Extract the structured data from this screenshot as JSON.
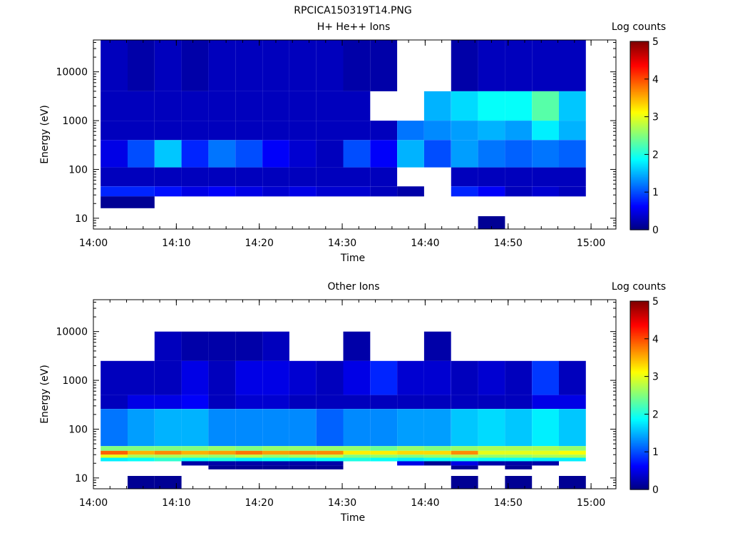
{
  "figure": {
    "title": "RPCICA150319T14.PNG"
  },
  "chart_data": [
    {
      "type": "heatmap",
      "title": "H+ He++ Ions",
      "xlabel": "Time",
      "ylabel": "Energy (eV)",
      "x_ticks": [
        "14:00",
        "14:10",
        "14:20",
        "14:30",
        "14:40",
        "14:50",
        "15:00"
      ],
      "y_ticks": [
        "10",
        "100",
        "1000",
        "10000"
      ],
      "x_range": [
        "14:00",
        "15:03"
      ],
      "y_range": [
        6,
        45000
      ],
      "y_scale": "log",
      "colorbar": {
        "label": "Log counts",
        "ticks": [
          "0",
          "1",
          "2",
          "3",
          "4",
          "5"
        ],
        "range": [
          0,
          5
        ]
      },
      "time_bins": [
        "14:02:30",
        "14:05:45",
        "14:09:00",
        "14:12:15",
        "14:15:30",
        "14:18:45",
        "14:22:00",
        "14:25:15",
        "14:28:30",
        "14:31:45",
        "14:35:00",
        "14:38:15",
        "14:41:30",
        "14:44:45",
        "14:48:00",
        "14:51:15",
        "14:54:30",
        "14:57:45"
      ],
      "rows": [
        {
          "e_lo": 4000,
          "e_hi": 45000,
          "v": [
            0.3,
            0.2,
            0.3,
            0.2,
            0.3,
            0.3,
            0.3,
            0.3,
            0.3,
            0.2,
            0.2,
            null,
            null,
            0.2,
            0.3,
            0.3,
            0.3,
            0.3
          ]
        },
        {
          "e_lo": 1000,
          "e_hi": 4000,
          "v": [
            0.3,
            0.3,
            0.3,
            0.3,
            0.3,
            0.3,
            0.3,
            0.3,
            0.3,
            0.3,
            null,
            null,
            1.5,
            1.7,
            1.9,
            1.9,
            2.3,
            1.6
          ]
        },
        {
          "e_lo": 400,
          "e_hi": 1000,
          "v": [
            0.3,
            0.3,
            0.3,
            0.3,
            0.3,
            0.3,
            0.3,
            0.3,
            0.3,
            0.3,
            0.3,
            1.2,
            1.3,
            1.4,
            1.5,
            1.4,
            1.8,
            1.5
          ]
        },
        {
          "e_lo": 110,
          "e_hi": 400,
          "v": [
            0.5,
            1.0,
            1.6,
            0.8,
            1.2,
            1.0,
            0.6,
            0.4,
            0.3,
            1.0,
            0.6,
            1.5,
            1.0,
            1.4,
            1.2,
            1.1,
            1.2,
            1.1
          ]
        },
        {
          "e_lo": 45,
          "e_hi": 110,
          "v": [
            0.3,
            0.3,
            0.3,
            0.3,
            0.3,
            0.3,
            0.3,
            0.3,
            0.3,
            0.3,
            0.3,
            null,
            null,
            0.3,
            0.3,
            0.3,
            0.3,
            0.3
          ]
        },
        {
          "e_lo": 28,
          "e_hi": 45,
          "v": [
            0.8,
            0.8,
            0.7,
            0.5,
            0.6,
            0.5,
            0.4,
            0.5,
            0.4,
            0.4,
            0.3,
            0.2,
            null,
            0.8,
            0.6,
            0.3,
            0.4,
            0.3
          ]
        },
        {
          "e_lo": 16,
          "e_hi": 28,
          "v": [
            0.1,
            0.1,
            null,
            null,
            null,
            null,
            null,
            null,
            null,
            null,
            null,
            null,
            null,
            null,
            null,
            null,
            null,
            null
          ]
        },
        {
          "e_lo": 6,
          "e_hi": 11,
          "v": [
            null,
            null,
            null,
            null,
            null,
            null,
            null,
            null,
            null,
            null,
            null,
            null,
            null,
            null,
            0.1,
            null,
            null,
            null
          ]
        }
      ]
    },
    {
      "type": "heatmap",
      "title": "Other Ions",
      "xlabel": "Time",
      "ylabel": "Energy (eV)",
      "x_ticks": [
        "14:00",
        "14:10",
        "14:20",
        "14:30",
        "14:40",
        "14:50",
        "15:00"
      ],
      "y_ticks": [
        "10",
        "100",
        "1000",
        "10000"
      ],
      "x_range": [
        "14:00",
        "15:03"
      ],
      "y_range": [
        6,
        45000
      ],
      "y_scale": "log",
      "colorbar": {
        "label": "Log counts",
        "ticks": [
          "0",
          "1",
          "2",
          "3",
          "4",
          "5"
        ],
        "range": [
          0,
          5
        ]
      },
      "time_bins": [
        "14:02:30",
        "14:05:45",
        "14:09:00",
        "14:12:15",
        "14:15:30",
        "14:18:45",
        "14:22:00",
        "14:25:15",
        "14:28:30",
        "14:31:45",
        "14:35:00",
        "14:38:15",
        "14:41:30",
        "14:44:45",
        "14:48:00",
        "14:51:15",
        "14:54:30",
        "14:57:45"
      ],
      "rows": [
        {
          "e_lo": 2500,
          "e_hi": 10000,
          "v": [
            null,
            null,
            0.3,
            0.2,
            0.2,
            0.2,
            0.3,
            null,
            null,
            0.2,
            null,
            null,
            0.2,
            null,
            null,
            null,
            null,
            null
          ]
        },
        {
          "e_lo": 500,
          "e_hi": 2500,
          "v": [
            0.3,
            0.3,
            0.3,
            0.5,
            0.3,
            0.5,
            0.5,
            0.4,
            0.3,
            0.5,
            0.8,
            0.4,
            0.4,
            0.3,
            0.4,
            0.3,
            0.9,
            0.3
          ]
        },
        {
          "e_lo": 260,
          "e_hi": 500,
          "v": [
            0.3,
            0.5,
            0.5,
            0.6,
            0.3,
            0.4,
            0.4,
            0.3,
            0.3,
            0.3,
            0.3,
            0.3,
            0.3,
            0.3,
            0.3,
            0.3,
            0.5,
            0.5
          ]
        },
        {
          "e_lo": 45,
          "e_hi": 260,
          "v": [
            1.2,
            1.4,
            1.5,
            1.5,
            1.3,
            1.3,
            1.3,
            1.3,
            1.1,
            1.3,
            1.3,
            1.4,
            1.4,
            1.6,
            1.7,
            1.6,
            1.8,
            1.6
          ]
        },
        {
          "e_lo": 36,
          "e_hi": 45,
          "v": [
            2.5,
            2.5,
            2.5,
            2.5,
            2.6,
            2.5,
            2.6,
            2.6,
            2.6,
            2.6,
            2.4,
            2.6,
            2.5,
            2.6,
            2.7,
            2.7,
            2.7,
            2.6
          ]
        },
        {
          "e_lo": 30,
          "e_hi": 36,
          "v": [
            3.9,
            3.5,
            3.7,
            3.5,
            3.6,
            3.8,
            3.6,
            3.7,
            3.7,
            3.2,
            3.2,
            3.3,
            3.3,
            3.7,
            3.0,
            3.0,
            3.0,
            3.1
          ]
        },
        {
          "e_lo": 26,
          "e_hi": 30,
          "v": [
            3.0,
            2.7,
            2.7,
            2.7,
            2.6,
            2.8,
            2.6,
            2.7,
            2.8,
            2.5,
            2.6,
            2.5,
            2.6,
            2.7,
            2.6,
            2.6,
            2.7,
            2.7
          ]
        },
        {
          "e_lo": 22,
          "e_hi": 26,
          "v": [
            1.8,
            1.9,
            2.1,
            1.9,
            2.0,
            1.8,
            1.9,
            1.8,
            1.9,
            2.0,
            1.9,
            1.8,
            1.9,
            2.0,
            1.9,
            1.9,
            1.8,
            1.8
          ]
        },
        {
          "e_lo": 18,
          "e_hi": 22,
          "v": [
            null,
            null,
            null,
            0.2,
            0.2,
            0.2,
            0.2,
            0.2,
            0.2,
            null,
            null,
            0.5,
            0.1,
            0.5,
            0.2,
            0.2,
            0.2,
            null
          ]
        },
        {
          "e_lo": 15,
          "e_hi": 18,
          "v": [
            null,
            null,
            null,
            null,
            0.1,
            0.1,
            0.1,
            0.1,
            0.1,
            null,
            null,
            null,
            null,
            0.1,
            null,
            0.1,
            null,
            null
          ]
        },
        {
          "e_lo": 6,
          "e_hi": 11,
          "v": [
            null,
            0.1,
            0.1,
            null,
            null,
            null,
            null,
            null,
            null,
            null,
            null,
            null,
            null,
            0.1,
            null,
            0.1,
            null,
            0.1
          ]
        }
      ]
    }
  ]
}
